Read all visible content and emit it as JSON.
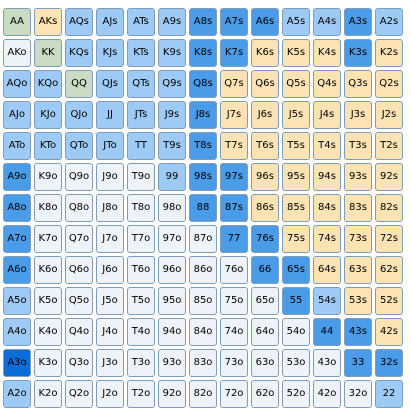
{
  "colors": {
    "dark": "#0a6ed9",
    "medium": "#4a9be8",
    "light": "#9ecbf5",
    "green": "#c9dcc3",
    "tan": "#fbe3b4",
    "white": "#eef3f9"
  },
  "grid": {
    "rows": [
      [
        {
          "label": "AA",
          "level": "green"
        },
        {
          "label": "AKs",
          "level": "tan"
        },
        {
          "label": "AQs",
          "level": "light"
        },
        {
          "label": "AJs",
          "level": "light"
        },
        {
          "label": "ATs",
          "level": "light"
        },
        {
          "label": "A9s",
          "level": "light"
        },
        {
          "label": "A8s",
          "level": "medium"
        },
        {
          "label": "A7s",
          "level": "medium"
        },
        {
          "label": "A6s",
          "level": "medium"
        },
        {
          "label": "A5s",
          "level": "light"
        },
        {
          "label": "A4s",
          "level": "light"
        },
        {
          "label": "A3s",
          "level": "medium"
        },
        {
          "label": "A2s",
          "level": "light"
        }
      ],
      [
        {
          "label": "AKo",
          "level": "white"
        },
        {
          "label": "KK",
          "level": "green"
        },
        {
          "label": "KQs",
          "level": "light"
        },
        {
          "label": "KJs",
          "level": "light"
        },
        {
          "label": "KTs",
          "level": "light"
        },
        {
          "label": "K9s",
          "level": "light"
        },
        {
          "label": "K8s",
          "level": "medium"
        },
        {
          "label": "K7s",
          "level": "medium"
        },
        {
          "label": "K6s",
          "level": "tan"
        },
        {
          "label": "K5s",
          "level": "tan"
        },
        {
          "label": "K4s",
          "level": "tan"
        },
        {
          "label": "K3s",
          "level": "medium"
        },
        {
          "label": "K2s",
          "level": "tan"
        }
      ],
      [
        {
          "label": "AQo",
          "level": "light"
        },
        {
          "label": "KQo",
          "level": "light"
        },
        {
          "label": "QQ",
          "level": "green"
        },
        {
          "label": "QJs",
          "level": "light"
        },
        {
          "label": "QTs",
          "level": "light"
        },
        {
          "label": "Q9s",
          "level": "light"
        },
        {
          "label": "Q8s",
          "level": "medium"
        },
        {
          "label": "Q7s",
          "level": "tan"
        },
        {
          "label": "Q6s",
          "level": "tan"
        },
        {
          "label": "Q5s",
          "level": "tan"
        },
        {
          "label": "Q4s",
          "level": "tan"
        },
        {
          "label": "Q3s",
          "level": "tan"
        },
        {
          "label": "Q2s",
          "level": "tan"
        }
      ],
      [
        {
          "label": "AJo",
          "level": "light"
        },
        {
          "label": "KJo",
          "level": "light"
        },
        {
          "label": "QJo",
          "level": "light"
        },
        {
          "label": "JJ",
          "level": "light"
        },
        {
          "label": "JTs",
          "level": "light"
        },
        {
          "label": "J9s",
          "level": "light"
        },
        {
          "label": "J8s",
          "level": "medium"
        },
        {
          "label": "J7s",
          "level": "tan"
        },
        {
          "label": "J6s",
          "level": "tan"
        },
        {
          "label": "J5s",
          "level": "tan"
        },
        {
          "label": "J4s",
          "level": "tan"
        },
        {
          "label": "J3s",
          "level": "tan"
        },
        {
          "label": "J2s",
          "level": "tan"
        }
      ],
      [
        {
          "label": "ATo",
          "level": "light"
        },
        {
          "label": "KTo",
          "level": "light"
        },
        {
          "label": "QTo",
          "level": "light"
        },
        {
          "label": "JTo",
          "level": "light"
        },
        {
          "label": "TT",
          "level": "light"
        },
        {
          "label": "T9s",
          "level": "light"
        },
        {
          "label": "T8s",
          "level": "medium"
        },
        {
          "label": "T7s",
          "level": "tan"
        },
        {
          "label": "T6s",
          "level": "tan"
        },
        {
          "label": "T5s",
          "level": "tan"
        },
        {
          "label": "T4s",
          "level": "tan"
        },
        {
          "label": "T3s",
          "level": "tan"
        },
        {
          "label": "T2s",
          "level": "tan"
        }
      ],
      [
        {
          "label": "A9o",
          "level": "medium"
        },
        {
          "label": "K9o",
          "level": "white"
        },
        {
          "label": "Q9o",
          "level": "white"
        },
        {
          "label": "J9o",
          "level": "white"
        },
        {
          "label": "T9o",
          "level": "white"
        },
        {
          "label": "99",
          "level": "light"
        },
        {
          "label": "98s",
          "level": "medium"
        },
        {
          "label": "97s",
          "level": "medium"
        },
        {
          "label": "96s",
          "level": "tan"
        },
        {
          "label": "95s",
          "level": "tan"
        },
        {
          "label": "94s",
          "level": "tan"
        },
        {
          "label": "93s",
          "level": "tan"
        },
        {
          "label": "92s",
          "level": "tan"
        }
      ],
      [
        {
          "label": "A8o",
          "level": "medium"
        },
        {
          "label": "K8o",
          "level": "white"
        },
        {
          "label": "Q8o",
          "level": "white"
        },
        {
          "label": "J8o",
          "level": "white"
        },
        {
          "label": "T8o",
          "level": "white"
        },
        {
          "label": "98o",
          "level": "white"
        },
        {
          "label": "88",
          "level": "medium"
        },
        {
          "label": "87s",
          "level": "medium"
        },
        {
          "label": "86s",
          "level": "tan"
        },
        {
          "label": "85s",
          "level": "tan"
        },
        {
          "label": "84s",
          "level": "tan"
        },
        {
          "label": "83s",
          "level": "tan"
        },
        {
          "label": "82s",
          "level": "tan"
        }
      ],
      [
        {
          "label": "A7o",
          "level": "medium"
        },
        {
          "label": "K7o",
          "level": "white"
        },
        {
          "label": "Q7o",
          "level": "white"
        },
        {
          "label": "J7o",
          "level": "white"
        },
        {
          "label": "T7o",
          "level": "white"
        },
        {
          "label": "97o",
          "level": "white"
        },
        {
          "label": "87o",
          "level": "white"
        },
        {
          "label": "77",
          "level": "medium"
        },
        {
          "label": "76s",
          "level": "medium"
        },
        {
          "label": "75s",
          "level": "tan"
        },
        {
          "label": "74s",
          "level": "tan"
        },
        {
          "label": "73s",
          "level": "tan"
        },
        {
          "label": "72s",
          "level": "tan"
        }
      ],
      [
        {
          "label": "A6o",
          "level": "medium"
        },
        {
          "label": "K6o",
          "level": "white"
        },
        {
          "label": "Q6o",
          "level": "white"
        },
        {
          "label": "J6o",
          "level": "white"
        },
        {
          "label": "T6o",
          "level": "white"
        },
        {
          "label": "96o",
          "level": "white"
        },
        {
          "label": "86o",
          "level": "white"
        },
        {
          "label": "76o",
          "level": "white"
        },
        {
          "label": "66",
          "level": "medium"
        },
        {
          "label": "65s",
          "level": "medium"
        },
        {
          "label": "64s",
          "level": "tan"
        },
        {
          "label": "63s",
          "level": "tan"
        },
        {
          "label": "62s",
          "level": "tan"
        }
      ],
      [
        {
          "label": "A5o",
          "level": "light"
        },
        {
          "label": "K5o",
          "level": "white"
        },
        {
          "label": "Q5o",
          "level": "white"
        },
        {
          "label": "J5o",
          "level": "white"
        },
        {
          "label": "T5o",
          "level": "white"
        },
        {
          "label": "95o",
          "level": "white"
        },
        {
          "label": "85o",
          "level": "white"
        },
        {
          "label": "75o",
          "level": "white"
        },
        {
          "label": "65o",
          "level": "white"
        },
        {
          "label": "55",
          "level": "medium"
        },
        {
          "label": "54s",
          "level": "light"
        },
        {
          "label": "53s",
          "level": "tan"
        },
        {
          "label": "52s",
          "level": "tan"
        }
      ],
      [
        {
          "label": "A4o",
          "level": "light"
        },
        {
          "label": "K4o",
          "level": "white"
        },
        {
          "label": "Q4o",
          "level": "white"
        },
        {
          "label": "J4o",
          "level": "white"
        },
        {
          "label": "T4o",
          "level": "white"
        },
        {
          "label": "94o",
          "level": "white"
        },
        {
          "label": "84o",
          "level": "white"
        },
        {
          "label": "74o",
          "level": "white"
        },
        {
          "label": "64o",
          "level": "white"
        },
        {
          "label": "54o",
          "level": "white"
        },
        {
          "label": "44",
          "level": "medium"
        },
        {
          "label": "43s",
          "level": "medium"
        },
        {
          "label": "42s",
          "level": "tan"
        }
      ],
      [
        {
          "label": "A3o",
          "level": "dark"
        },
        {
          "label": "K3o",
          "level": "white"
        },
        {
          "label": "Q3o",
          "level": "white"
        },
        {
          "label": "J3o",
          "level": "white"
        },
        {
          "label": "T3o",
          "level": "white"
        },
        {
          "label": "93o",
          "level": "white"
        },
        {
          "label": "83o",
          "level": "white"
        },
        {
          "label": "73o",
          "level": "white"
        },
        {
          "label": "63o",
          "level": "white"
        },
        {
          "label": "53o",
          "level": "white"
        },
        {
          "label": "43o",
          "level": "white"
        },
        {
          "label": "33",
          "level": "medium"
        },
        {
          "label": "32s",
          "level": "medium"
        }
      ],
      [
        {
          "label": "A2o",
          "level": "light"
        },
        {
          "label": "K2o",
          "level": "white"
        },
        {
          "label": "Q2o",
          "level": "white"
        },
        {
          "label": "J2o",
          "level": "white"
        },
        {
          "label": "T2o",
          "level": "white"
        },
        {
          "label": "92o",
          "level": "white"
        },
        {
          "label": "82o",
          "level": "white"
        },
        {
          "label": "72o",
          "level": "white"
        },
        {
          "label": "62o",
          "level": "white"
        },
        {
          "label": "52o",
          "level": "white"
        },
        {
          "label": "42o",
          "level": "white"
        },
        {
          "label": "32o",
          "level": "white"
        },
        {
          "label": "22",
          "level": "light"
        }
      ]
    ]
  }
}
